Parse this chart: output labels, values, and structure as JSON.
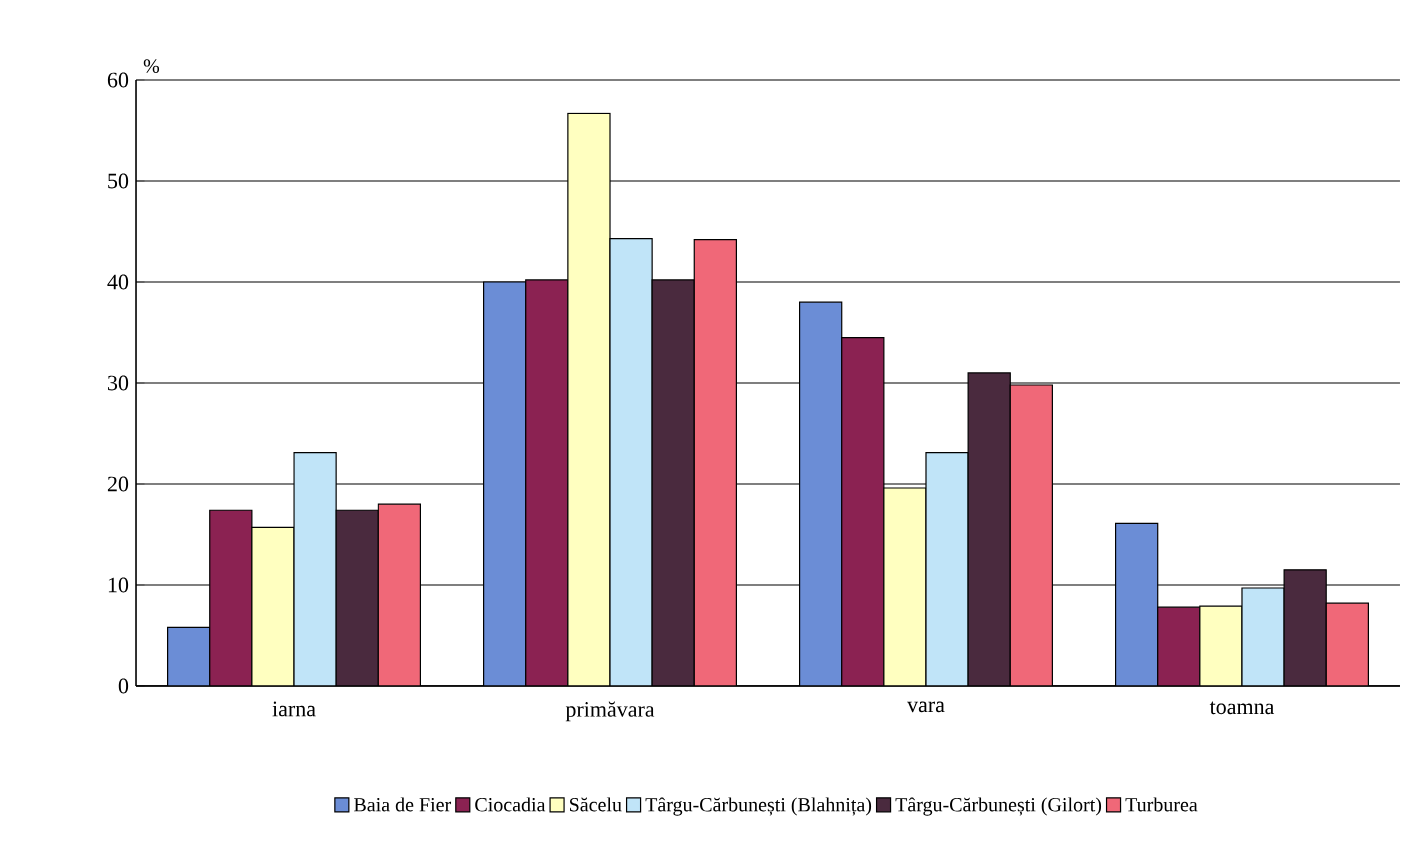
{
  "chart_data": {
    "type": "bar",
    "ylabel": "%",
    "categories": [
      "iarna",
      "primăvara",
      "vara",
      "toamna"
    ],
    "series": [
      {
        "name": "Baia de Fier",
        "color": "#6b8dd6",
        "values": [
          5.8,
          40.0,
          38.0,
          16.1
        ]
      },
      {
        "name": "Ciocadia",
        "color": "#8b2252",
        "values": [
          17.4,
          40.2,
          34.5,
          7.8
        ]
      },
      {
        "name": "Săcelu",
        "color": "#ffffc0",
        "values": [
          15.7,
          56.7,
          19.6,
          7.9
        ]
      },
      {
        "name": "Târgu-Cărbunești (Blahnița)",
        "color": "#c0e4f8",
        "values": [
          23.1,
          44.3,
          23.1,
          9.7
        ]
      },
      {
        "name": "Târgu-Cărbunești (Gilort)",
        "color": "#4a2a3e",
        "values": [
          17.4,
          40.2,
          31.0,
          11.5
        ]
      },
      {
        "name": "Turburea",
        "color": "#f06878",
        "values": [
          18.0,
          44.2,
          29.8,
          8.2
        ]
      }
    ],
    "ylim": [
      0,
      60
    ],
    "yticks": [
      0,
      10,
      20,
      30,
      40,
      50,
      60
    ],
    "grid": "y",
    "legend": "bottom"
  }
}
